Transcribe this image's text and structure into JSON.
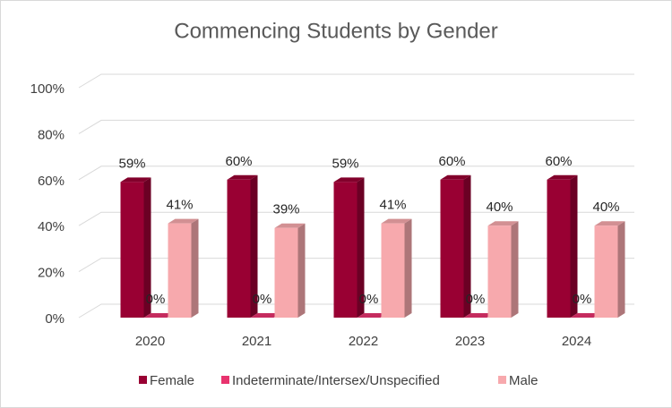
{
  "chart_data": {
    "type": "bar3d",
    "title": "Commencing Students by Gender",
    "categories": [
      "2020",
      "2021",
      "2022",
      "2023",
      "2024"
    ],
    "series": [
      {
        "name": "Female",
        "color": "#990033",
        "values": [
          59,
          60,
          59,
          60,
          60
        ],
        "value_labels": [
          "59%",
          "60%",
          "59%",
          "60%",
          "60%"
        ]
      },
      {
        "name": "Indeterminate/Intersex/Unspecified",
        "color": "#e8336e",
        "values": [
          0,
          0,
          0,
          0,
          0
        ],
        "value_labels": [
          "0%",
          "0%",
          "0%",
          "0%",
          "0%"
        ]
      },
      {
        "name": "Male",
        "color": "#f7a9ad",
        "values": [
          41,
          39,
          41,
          40,
          40
        ],
        "value_labels": [
          "41%",
          "39%",
          "41%",
          "40%",
          "40%"
        ]
      }
    ],
    "ylim": [
      0,
      100
    ],
    "yticks": [
      {
        "value": 0,
        "label": "0%"
      },
      {
        "value": 20,
        "label": "20%"
      },
      {
        "value": 40,
        "label": "40%"
      },
      {
        "value": 60,
        "label": "60%"
      },
      {
        "value": 80,
        "label": "80%"
      },
      {
        "value": 100,
        "label": "100%"
      }
    ],
    "grid": true,
    "legend": "bottom"
  }
}
